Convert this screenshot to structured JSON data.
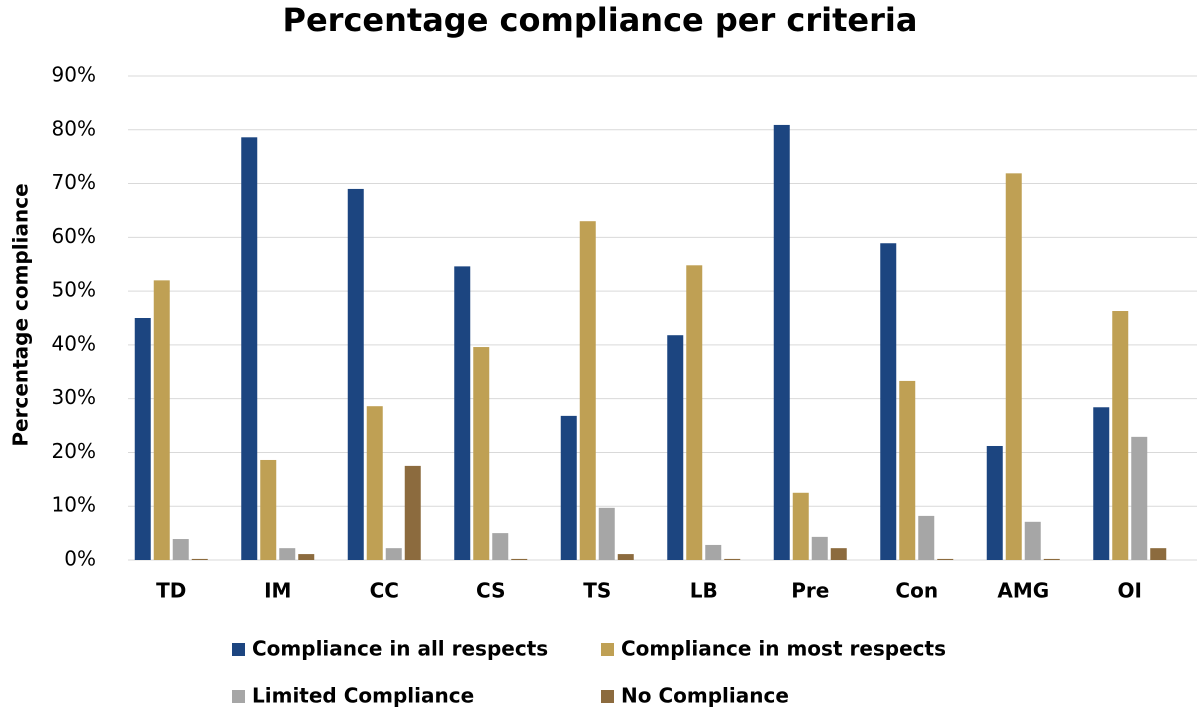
{
  "chart_data": {
    "type": "bar",
    "title": "Percentage compliance per criteria",
    "y_label": "Percentage compliance",
    "categories": [
      "TD",
      "IM",
      "CC",
      "CS",
      "TS",
      "LB",
      "Pre",
      "Con",
      "AMG",
      "OI"
    ],
    "series": [
      {
        "name": "Compliance in all respects",
        "color": "#1c4580",
        "values": [
          45.0,
          78.6,
          69.0,
          54.6,
          26.8,
          41.8,
          80.9,
          58.9,
          21.2,
          28.4
        ]
      },
      {
        "name": "Compliance in most respects",
        "color": "#bfa054",
        "values": [
          52.0,
          18.6,
          28.6,
          39.6,
          63.0,
          54.8,
          12.5,
          33.3,
          71.9,
          46.3
        ]
      },
      {
        "name": "Limited Compliance",
        "color": "#a6a6a6",
        "values": [
          3.9,
          2.2,
          2.2,
          5.0,
          9.7,
          2.8,
          4.3,
          8.2,
          7.1,
          22.9
        ]
      },
      {
        "name": "No Compliance",
        "color": "#8c6b3e",
        "values": [
          0.2,
          1.1,
          17.5,
          0.2,
          1.1,
          0.2,
          2.2,
          0.2,
          0.2,
          2.2
        ]
      }
    ],
    "ylim": [
      0,
      90
    ],
    "yticks": [
      {
        "value": 0,
        "label": "0%"
      },
      {
        "value": 10,
        "label": "10%"
      },
      {
        "value": 20,
        "label": "20%"
      },
      {
        "value": 30,
        "label": "30%"
      },
      {
        "value": 40,
        "label": "40%"
      },
      {
        "value": 50,
        "label": "50%"
      },
      {
        "value": 60,
        "label": "60%"
      },
      {
        "value": 70,
        "label": "70%"
      },
      {
        "value": 80,
        "label": "80%"
      },
      {
        "value": 90,
        "label": "90%"
      }
    ],
    "grid": true
  }
}
